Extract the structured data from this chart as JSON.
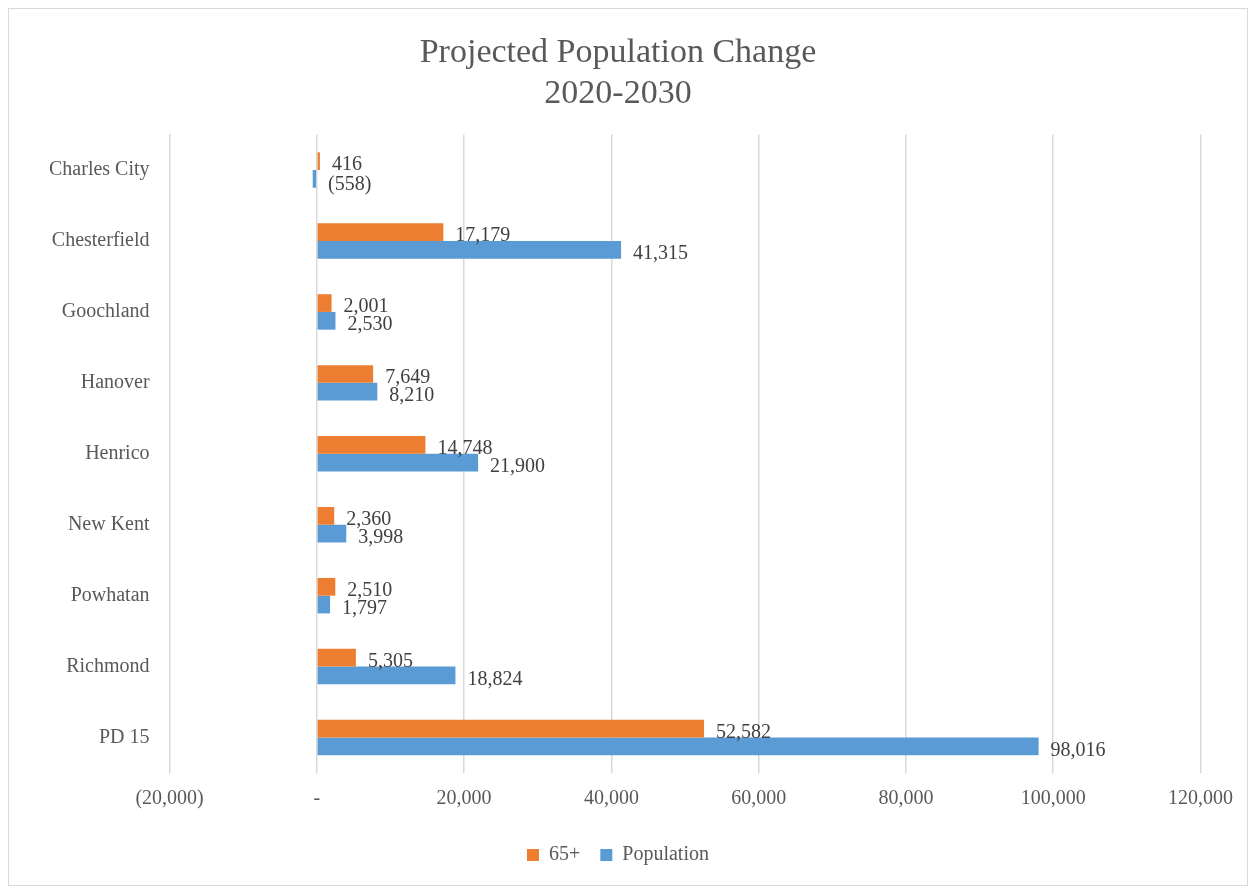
{
  "chart_data": {
    "type": "bar",
    "orientation": "horizontal",
    "title": "Projected Population Change\n2020-2030",
    "categories": [
      "Charles City",
      "Chesterfield",
      "Goochland",
      "Hanover",
      "Henrico",
      "New Kent",
      "Powhatan",
      "Richmond",
      "PD 15"
    ],
    "series": [
      {
        "name": "65+",
        "color": "#ed7d31",
        "values": [
          416,
          17179,
          2001,
          7649,
          14748,
          2360,
          2510,
          5305,
          52582
        ],
        "value_labels": [
          "416",
          "17,179",
          "2,001",
          "7,649",
          "14,748",
          "2,360",
          "2,510",
          "5,305",
          "52,582"
        ]
      },
      {
        "name": "Population",
        "color": "#5b9bd5",
        "values": [
          -558,
          41315,
          2530,
          8210,
          21900,
          3998,
          1797,
          18824,
          98016
        ],
        "value_labels": [
          "(558)",
          "41,315",
          "2,530",
          "8,210",
          "21,900",
          "3,998",
          "1,797",
          "18,824",
          "98,016"
        ]
      }
    ],
    "xlim": [
      -20000,
      120000
    ],
    "xticks": [
      {
        "value": -20000,
        "label": "(20,000)"
      },
      {
        "value": 0,
        "label": "-"
      },
      {
        "value": 20000,
        "label": "20,000"
      },
      {
        "value": 40000,
        "label": "40,000"
      },
      {
        "value": 60000,
        "label": "60,000"
      },
      {
        "value": 80000,
        "label": "80,000"
      },
      {
        "value": 100000,
        "label": "100,000"
      },
      {
        "value": 120000,
        "label": "120,000"
      }
    ],
    "grid": "x",
    "legend": "bottom"
  }
}
